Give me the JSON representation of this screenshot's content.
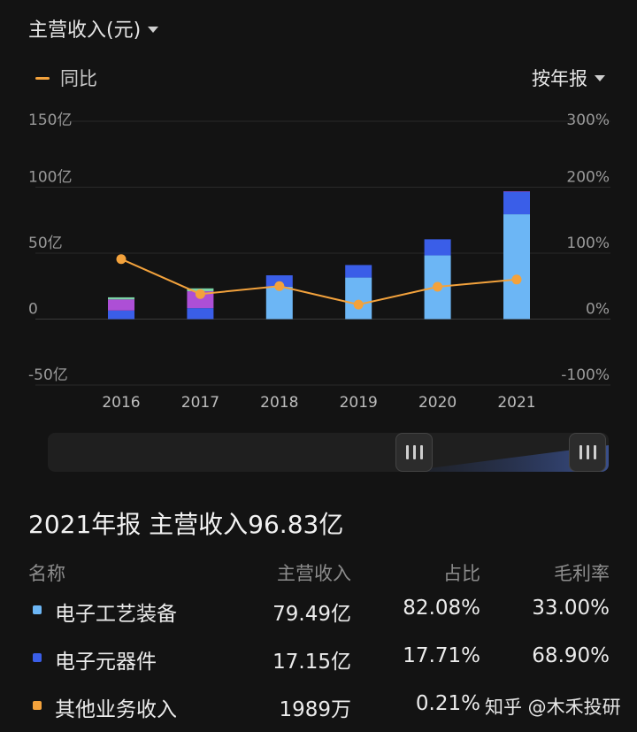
{
  "header": {
    "title": "主营收入(元)"
  },
  "legend": {
    "label": "同比"
  },
  "period_selector": {
    "label": "按年报"
  },
  "chart_data": {
    "type": "bar",
    "stacked": true,
    "categories": [
      "2016",
      "2017",
      "2018",
      "2019",
      "2020",
      "2021"
    ],
    "y_left": {
      "ticks": [
        "150亿",
        "100亿",
        "50亿",
        "0",
        "-50亿"
      ],
      "range": [
        -50,
        150
      ],
      "unit": "亿"
    },
    "y_right": {
      "ticks": [
        "300%",
        "200%",
        "100%",
        "0%",
        "-100%"
      ],
      "range": [
        -100,
        300
      ]
    },
    "series": [
      {
        "name": "电子工艺装备",
        "color": "#6cb6f5",
        "values": [
          0,
          0,
          24.6,
          31.5,
          48.3,
          79.49
        ]
      },
      {
        "name": "电子元器件",
        "color": "#3a5ee8",
        "values": [
          6.5,
          8.3,
          8.6,
          9.5,
          12.2,
          17.15
        ]
      },
      {
        "name": "其他业务收入",
        "color": "#ad4fd6",
        "values": [
          8.4,
          12.8,
          0,
          0,
          0,
          0.2
        ]
      },
      {
        "name": "其他",
        "color": "#7bd3a6",
        "values": [
          1.6,
          2.2,
          0,
          0,
          0,
          0
        ]
      }
    ],
    "line": {
      "name": "同比",
      "color": "#f3a23c",
      "values": [
        91,
        38,
        50,
        22,
        49,
        60
      ]
    },
    "grid": true
  },
  "summary": {
    "title": "2021年报 主营收入96.83亿"
  },
  "table": {
    "headers": [
      "名称",
      "主营收入",
      "占比",
      "毛利率"
    ],
    "rows": [
      {
        "name": "电子工艺装备",
        "revenue": "79.49亿",
        "share": "82.08%",
        "margin": "33.00%",
        "color": "#6cb6f5"
      },
      {
        "name": "电子元器件",
        "revenue": "17.15亿",
        "share": "17.71%",
        "margin": "68.90%",
        "color": "#3a5ee8"
      },
      {
        "name": "其他业务收入",
        "revenue": "1989万",
        "share": "0.21%",
        "margin": "",
        "color": "#f3a23c"
      }
    ]
  },
  "watermark": {
    "text": "知乎 @木禾投研"
  }
}
